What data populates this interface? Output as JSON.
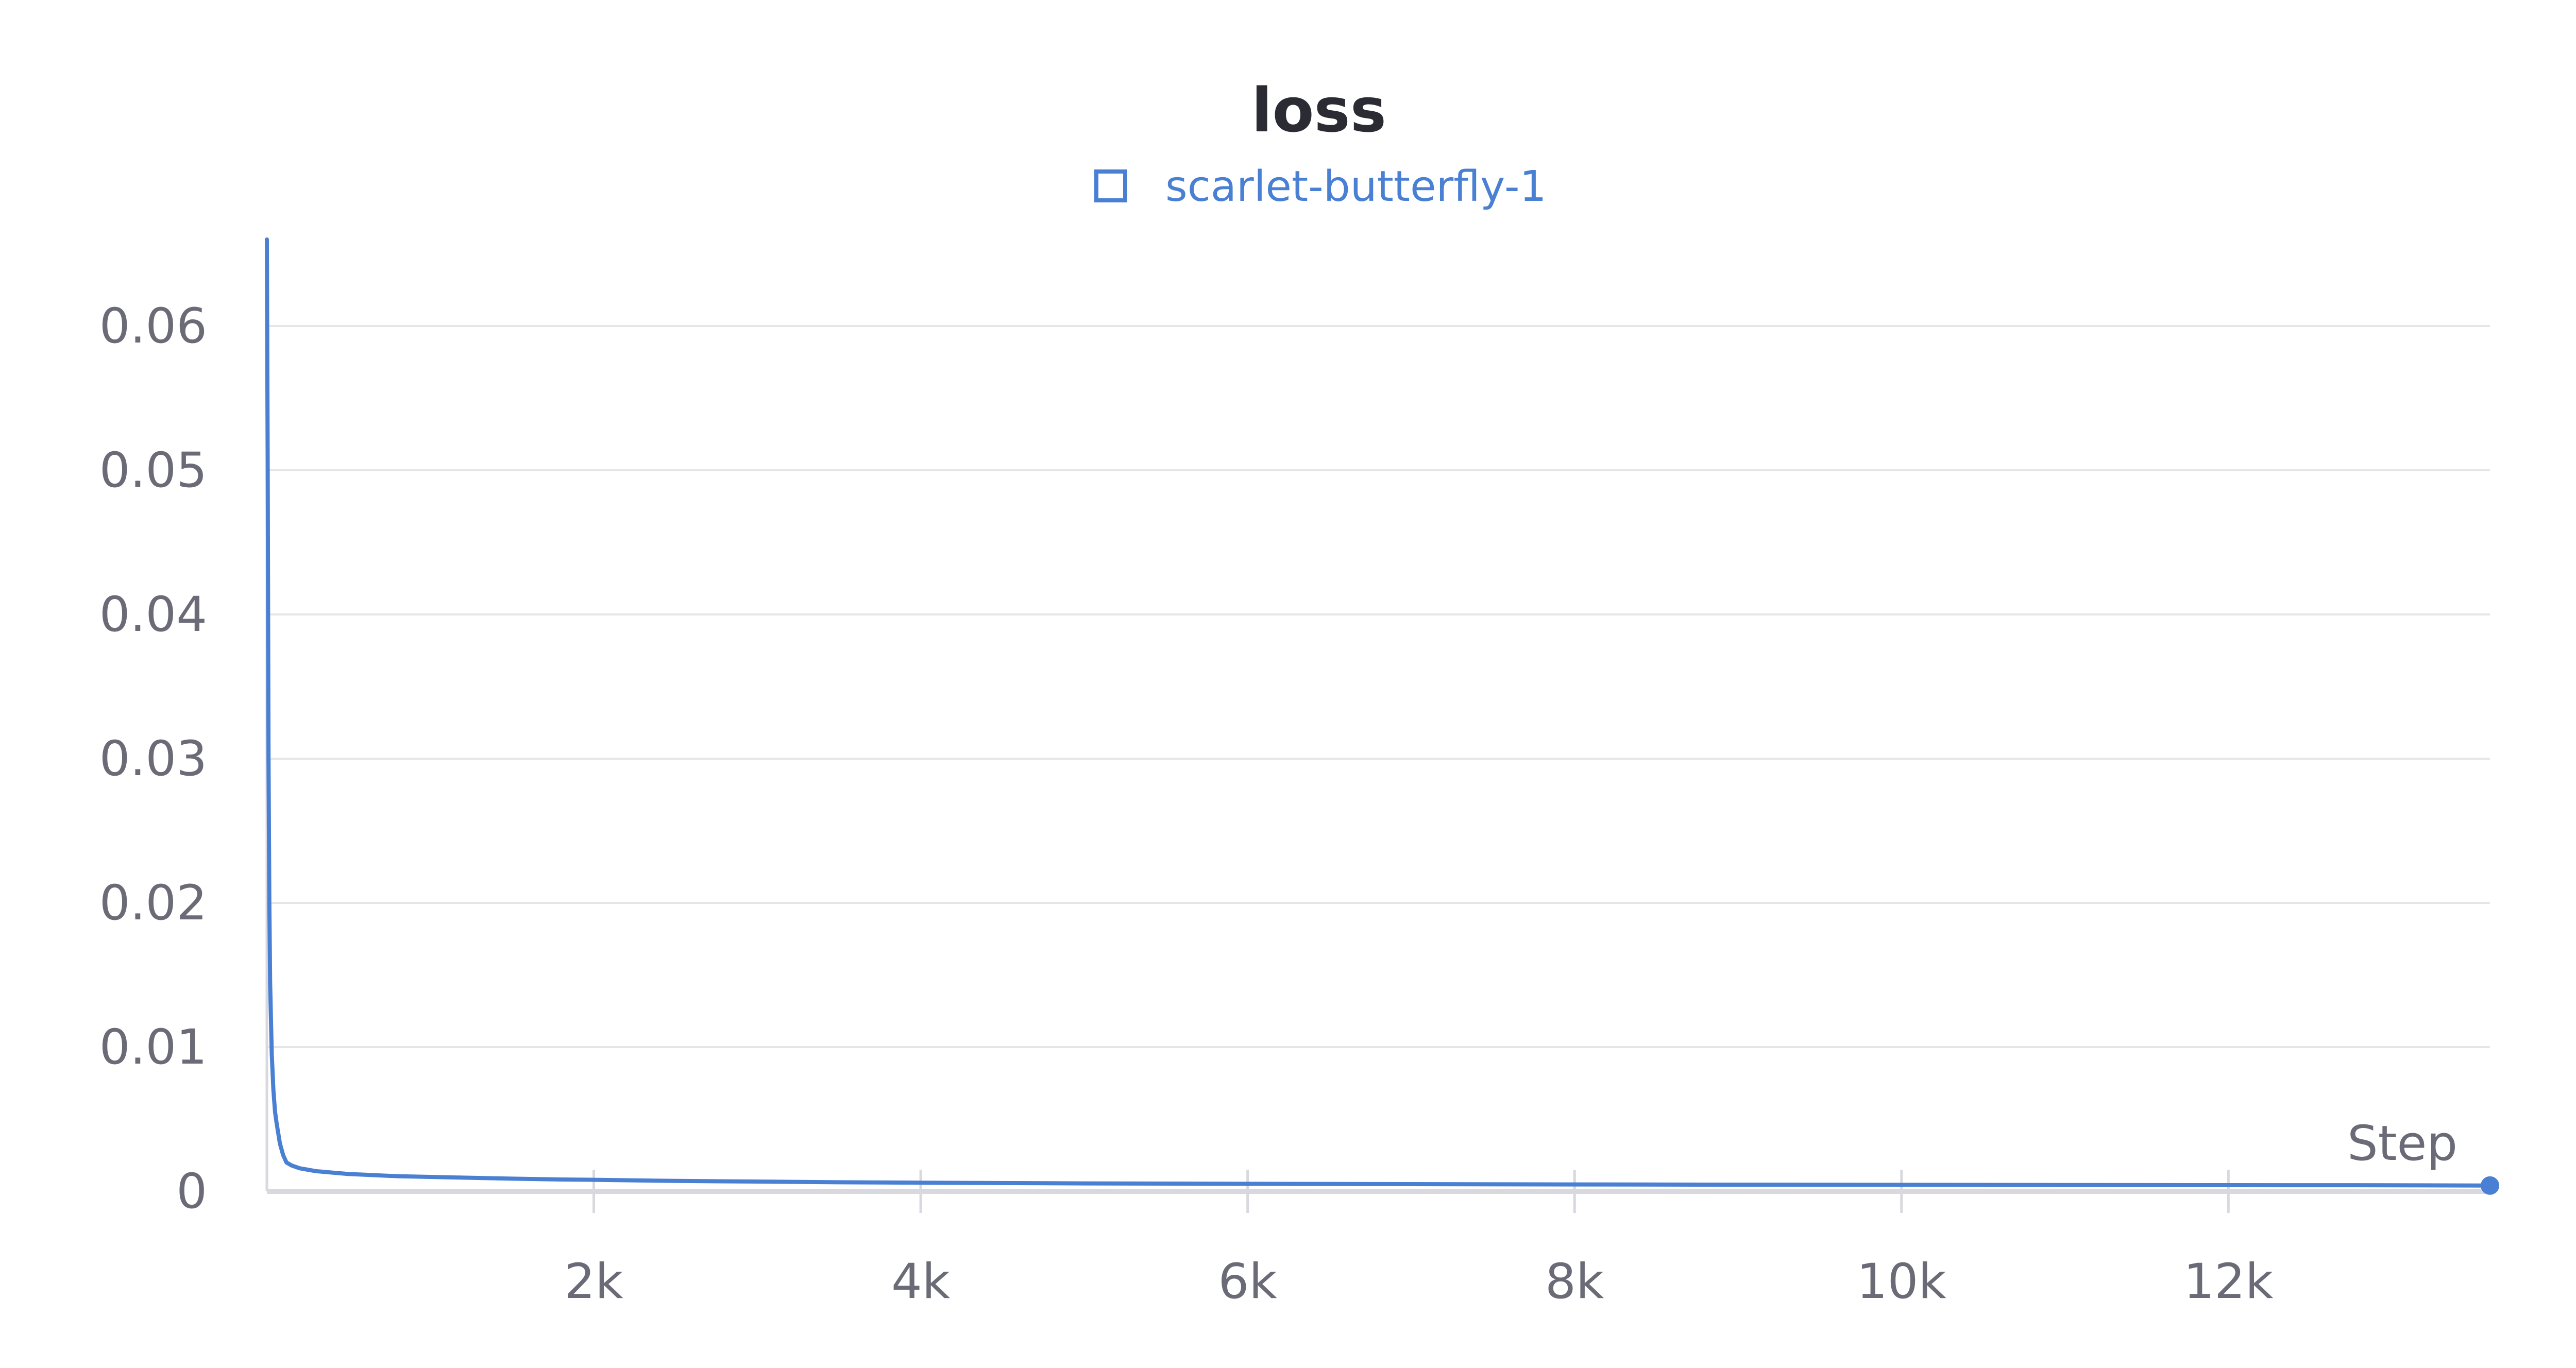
{
  "chart_data": {
    "type": "line",
    "title": "loss",
    "xlabel": "Step",
    "ylabel": "",
    "xlim": [
      0,
      13600
    ],
    "ylim": [
      0,
      0.066
    ],
    "x_ticks": [
      2000,
      4000,
      6000,
      8000,
      10000,
      12000
    ],
    "x_tick_labels": [
      "2k",
      "4k",
      "6k",
      "8k",
      "10k",
      "12k"
    ],
    "y_ticks": [
      0,
      0.01,
      0.02,
      0.03,
      0.04,
      0.05,
      0.06
    ],
    "y_tick_labels": [
      "0",
      "0.01",
      "0.02",
      "0.03",
      "0.04",
      "0.05",
      "0.06"
    ],
    "grid": true,
    "legend_position": "top-center",
    "colors": {
      "series": "#4a80d3",
      "grid": "#e6e6ea",
      "axis": "#d8d8de",
      "tick_text": "#6b6b78",
      "title": "#2b2b33"
    },
    "series": [
      {
        "name": "scarlet-butterfly-1",
        "x": [
          0,
          5,
          10,
          15,
          20,
          30,
          40,
          50,
          60,
          70,
          80,
          100,
          120,
          150,
          200,
          250,
          300,
          400,
          500,
          600,
          700,
          800,
          1000,
          1200,
          1500,
          1800,
          2000,
          2500,
          3000,
          3500,
          4000,
          5000,
          6000,
          7000,
          8000,
          9000,
          10000,
          11000,
          12000,
          13000,
          13600
        ],
        "y": [
          0.066,
          0.05,
          0.03,
          0.02,
          0.0145,
          0.0095,
          0.007,
          0.0055,
          0.0047,
          0.004,
          0.0033,
          0.0025,
          0.002,
          0.0018,
          0.0016,
          0.0015,
          0.0014,
          0.0013,
          0.0012,
          0.00115,
          0.0011,
          0.00105,
          0.001,
          0.00095,
          0.00088,
          0.00082,
          0.0008,
          0.00072,
          0.00068,
          0.00063,
          0.0006,
          0.00055,
          0.00052,
          0.0005,
          0.00048,
          0.00046,
          0.00045,
          0.00044,
          0.00043,
          0.00042,
          0.0004
        ]
      }
    ]
  }
}
